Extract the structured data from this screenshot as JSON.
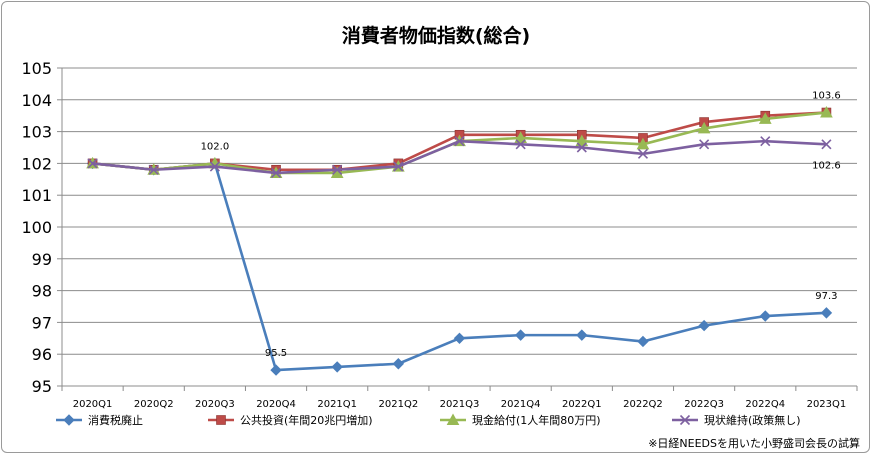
{
  "chart_data": {
    "type": "line",
    "title": "消費者物価指数(総合)",
    "categories": [
      "2020Q1",
      "2020Q2",
      "2020Q3",
      "2020Q4",
      "2021Q1",
      "2021Q2",
      "2021Q3",
      "2021Q4",
      "2022Q1",
      "2022Q2",
      "2022Q3",
      "2022Q4",
      "2023Q1"
    ],
    "ylim": [
      95,
      105
    ],
    "yticks": [
      95,
      96,
      97,
      98,
      99,
      100,
      101,
      102,
      103,
      104,
      105
    ],
    "grid": true,
    "legend_position": "bottom",
    "series": [
      {
        "name": "消費税廃止",
        "color": "#4a7ebb",
        "marker": "diamond",
        "values": [
          102.0,
          101.8,
          102.0,
          95.5,
          95.6,
          95.7,
          96.5,
          96.6,
          96.6,
          96.4,
          96.9,
          97.2,
          97.3
        ]
      },
      {
        "name": "公共投資(年間20兆円増加)",
        "color": "#be4b48",
        "marker": "square",
        "values": [
          102.0,
          101.8,
          102.0,
          101.8,
          101.8,
          102.0,
          102.9,
          102.9,
          102.9,
          102.8,
          103.3,
          103.5,
          103.6
        ]
      },
      {
        "name": "現金給付(1人年間80万円)",
        "color": "#98b954",
        "marker": "triangle",
        "values": [
          102.0,
          101.8,
          102.0,
          101.7,
          101.7,
          101.9,
          102.7,
          102.8,
          102.7,
          102.6,
          103.1,
          103.4,
          103.6
        ]
      },
      {
        "name": "現状維持(政策無し)",
        "color": "#7d60a0",
        "marker": "x",
        "values": [
          102.0,
          101.8,
          101.9,
          101.7,
          101.8,
          101.9,
          102.7,
          102.6,
          102.5,
          102.3,
          102.6,
          102.7,
          102.6
        ]
      }
    ],
    "annotations": [
      {
        "series": 0,
        "index": 2,
        "text": "102.0",
        "pos": "above"
      },
      {
        "series": 0,
        "index": 3,
        "text": "95.5",
        "pos": "above"
      },
      {
        "series": 0,
        "index": 12,
        "text": "97.3",
        "pos": "above"
      },
      {
        "series": 1,
        "index": 12,
        "text": "103.6",
        "pos": "above"
      },
      {
        "series": 3,
        "index": 12,
        "text": "102.6",
        "pos": "below"
      }
    ],
    "note": "※日経NEEDSを用いた小野盛司会長の試算"
  }
}
